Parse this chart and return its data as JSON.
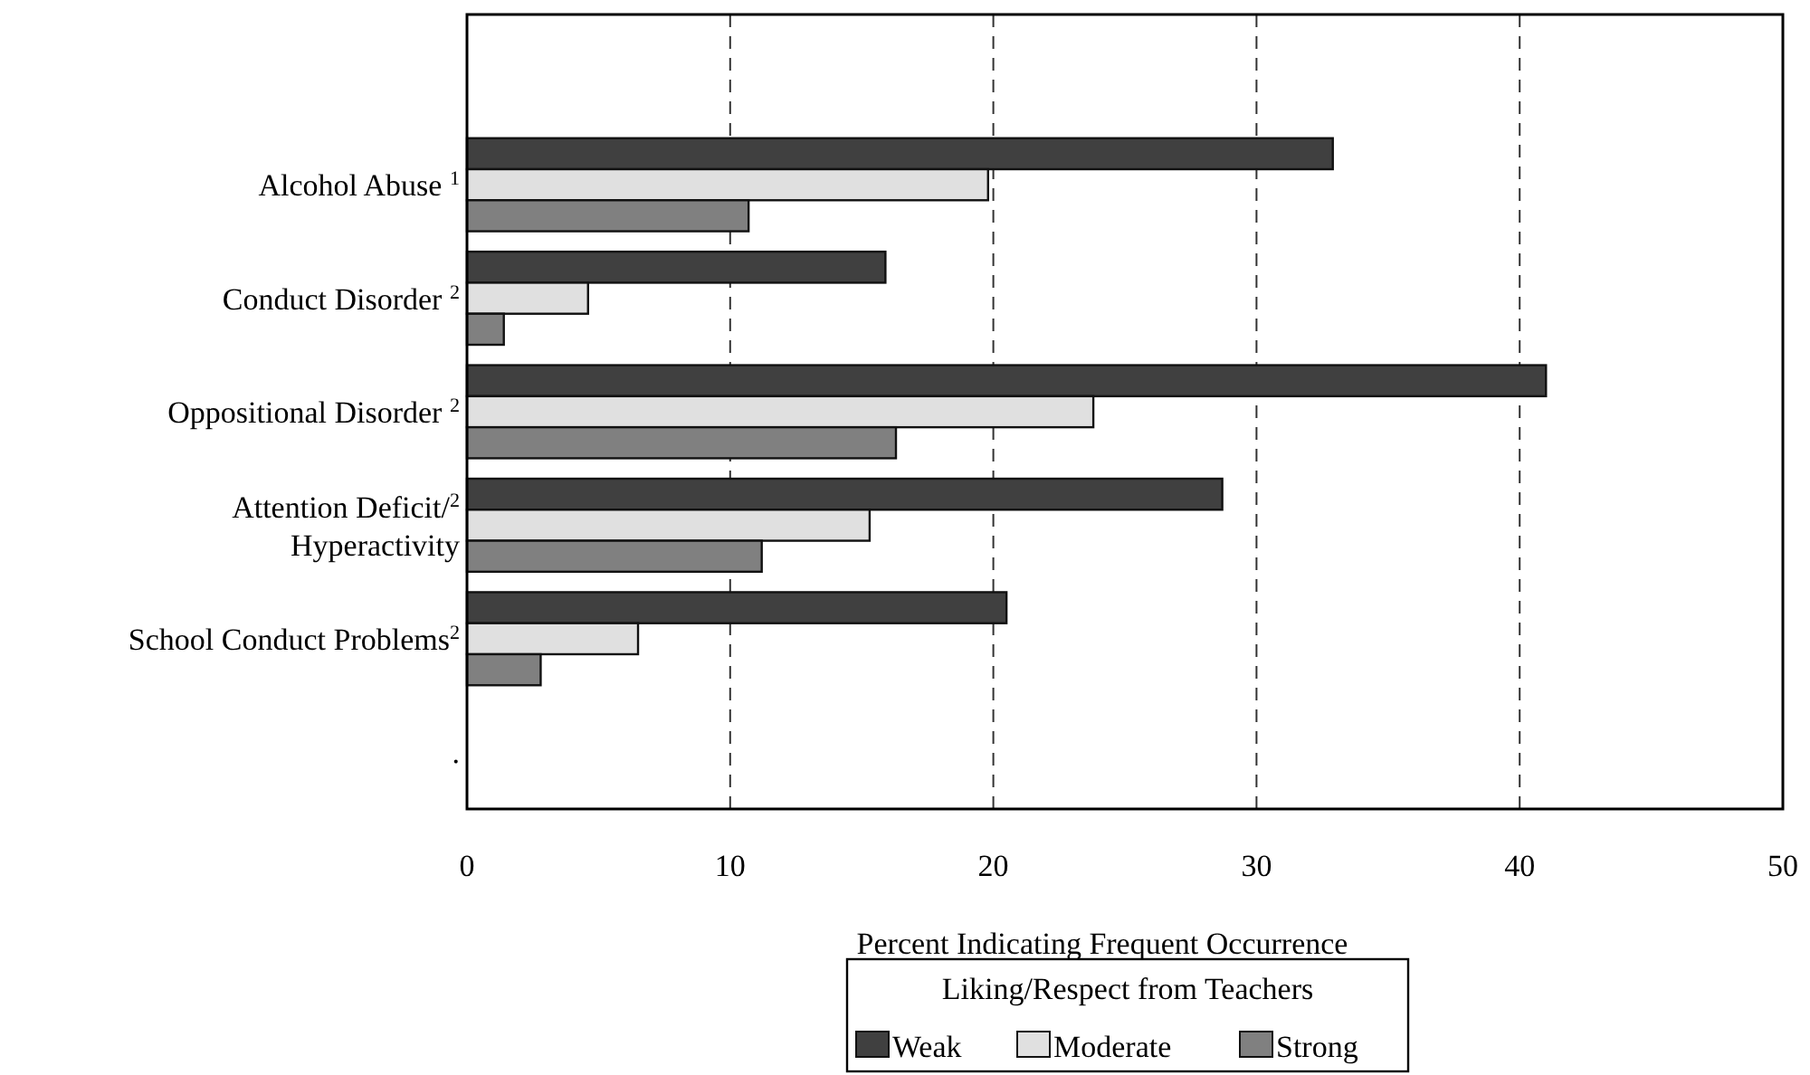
{
  "chart_data": {
    "type": "bar",
    "orientation": "horizontal",
    "xlabel": "Percent Indicating Frequent Occurrence",
    "legend_title": "Liking/Respect from Teachers",
    "categories": [
      null,
      "Alcohol Abuse $^{1}$",
      "Conduct Disorder $^{2}$",
      "Oppositional Disorder $^{2}$",
      "Attention Deficit/$^{2}$\nHyperactivity",
      "School Conduct Problems$^{2}$",
      "."
    ],
    "series": [
      {
        "name": "Weak",
        "color": "#404040",
        "values": [
          null,
          32.9,
          15.9,
          41.0,
          28.7,
          20.5,
          null
        ]
      },
      {
        "name": "Moderate",
        "color": "#e0e0e0",
        "values": [
          null,
          19.8,
          4.6,
          23.8,
          15.3,
          6.5,
          null
        ]
      },
      {
        "name": "Strong",
        "color": "#808080",
        "values": [
          null,
          10.7,
          1.4,
          16.3,
          11.2,
          2.8,
          null
        ]
      }
    ],
    "xlim": [
      0,
      50
    ],
    "xticks": [
      0,
      10,
      20,
      30,
      40,
      50
    ],
    "grid": "x",
    "legend": "bottom"
  }
}
